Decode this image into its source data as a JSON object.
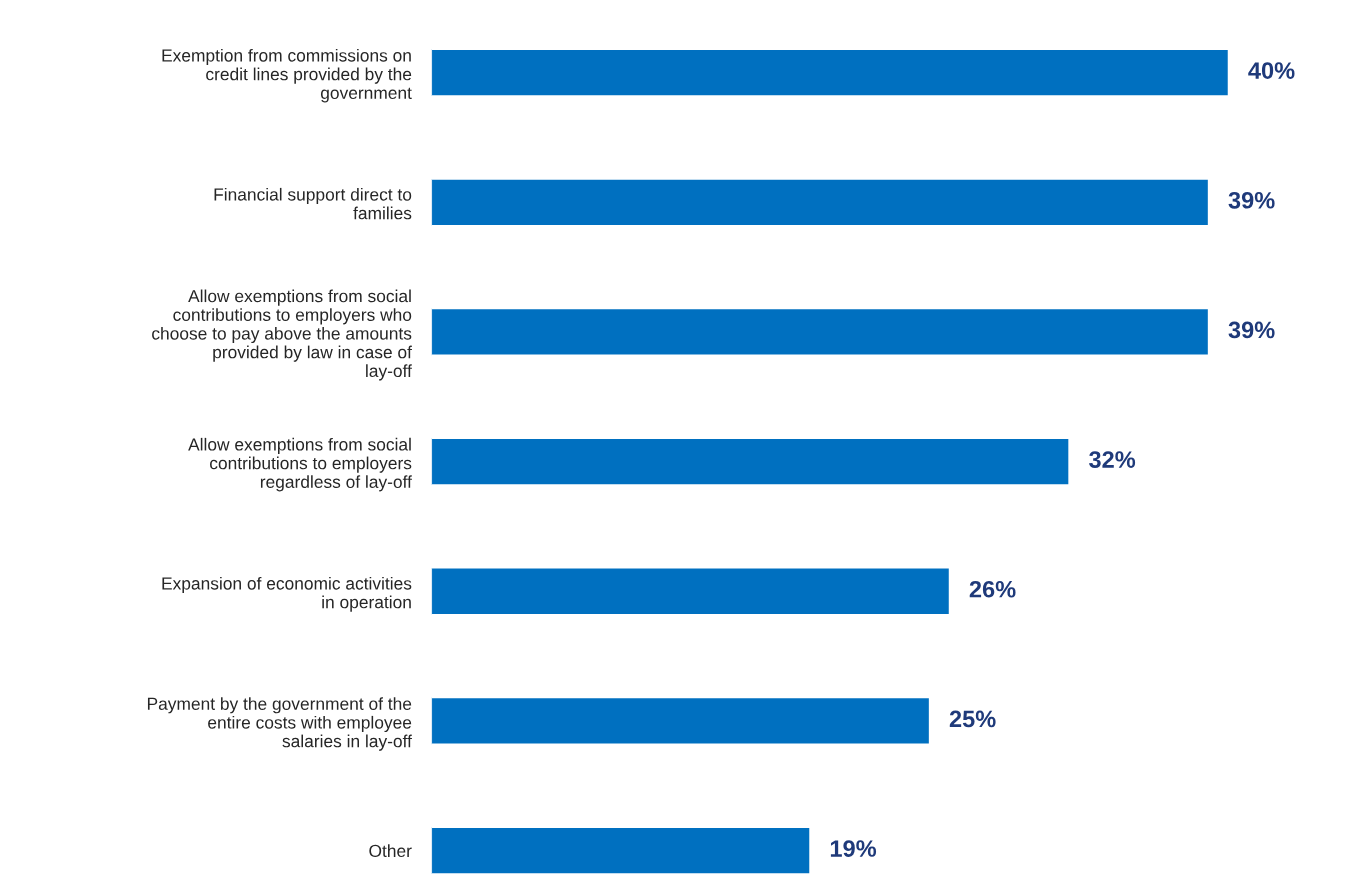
{
  "chart_data": {
    "type": "bar",
    "orientation": "horizontal",
    "categories": [
      "Exemption from commissions on credit lines provided by the government",
      "Financial support direct to families",
      "Allow exemptions from social contributions to employers who choose to pay above the amounts provided by law in case of lay-off",
      "Allow exemptions from social contributions to employers regardless of lay-off",
      "Expansion of economic activities in operation",
      "Payment by the government of the entire costs with employee salaries in lay-off",
      "Other"
    ],
    "values": [
      40,
      39,
      39,
      32,
      26,
      25,
      19
    ],
    "value_labels": [
      "40%",
      "39%",
      "39%",
      "32%",
      "26%",
      "25%",
      "19%"
    ],
    "color": "#0070c0",
    "grid": false,
    "legend": false,
    "tick_labels": "y"
  }
}
